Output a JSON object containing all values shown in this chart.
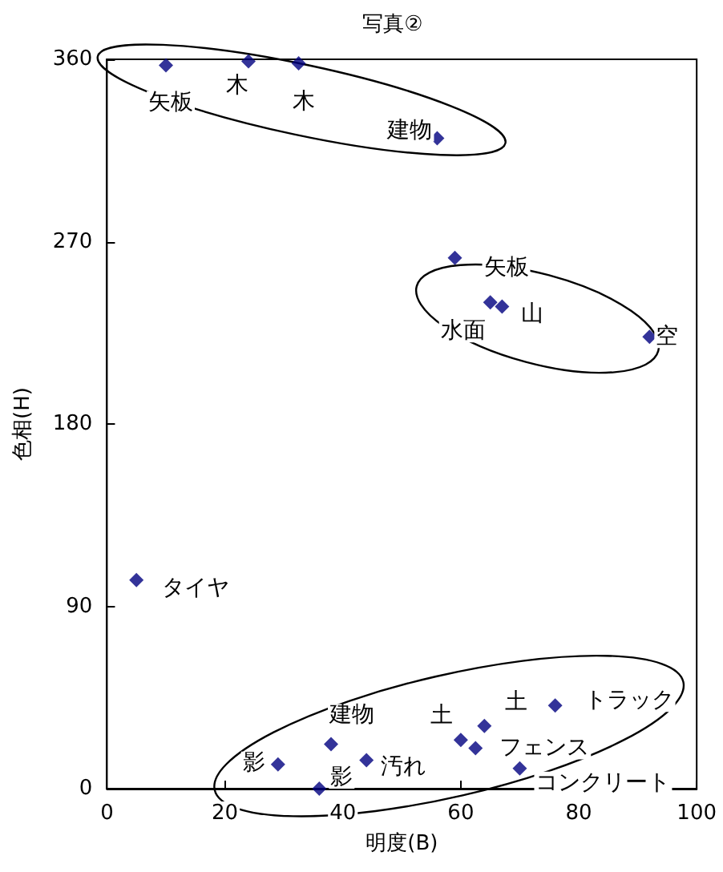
{
  "chart_data": {
    "type": "scatter",
    "title": "写真②",
    "xlabel": "明度(B)",
    "ylabel": "色相(H)",
    "series": [
      {
        "color": "#000080",
        "x": [
          10,
          24,
          32.5,
          56,
          59,
          65,
          67,
          92,
          5,
          29,
          38,
          44,
          36,
          60,
          62.5,
          64,
          76,
          70
        ],
        "values": [
          357,
          359,
          358,
          321,
          262,
          240,
          238,
          223,
          103,
          12,
          22,
          14,
          0,
          24,
          20,
          31,
          41,
          10
        ]
      }
    ],
    "xlim": [
      0,
      100
    ],
    "xticks": [
      0,
      20,
      40,
      60,
      80,
      100
    ],
    "ylim": [
      0,
      360
    ],
    "yticks": [
      0,
      90,
      180,
      270,
      360
    ],
    "grid": false,
    "marker": "diamond",
    "annotations": [
      {
        "text": "矢板",
        "x": 10,
        "y": 357
      },
      {
        "text": "木",
        "x": 24,
        "y": 359
      },
      {
        "text": "木",
        "x": 32.5,
        "y": 358
      },
      {
        "text": "建物",
        "x": 56,
        "y": 321
      },
      {
        "text": "矢板",
        "x": 59,
        "y": 262
      },
      {
        "text": "水面",
        "x": 65,
        "y": 240
      },
      {
        "text": "山",
        "x": 67,
        "y": 238
      },
      {
        "text": "空",
        "x": 92,
        "y": 223
      },
      {
        "text": "タイヤ",
        "x": 5,
        "y": 103
      },
      {
        "text": "建物",
        "x": 38,
        "y": 22
      },
      {
        "text": "土",
        "x": 60,
        "y": 24
      },
      {
        "text": "土",
        "x": 64,
        "y": 31
      },
      {
        "text": "トラック",
        "x": 76,
        "y": 41
      },
      {
        "text": "影",
        "x": 29,
        "y": 12
      },
      {
        "text": "汚れ",
        "x": 44,
        "y": 14
      },
      {
        "text": "影",
        "x": 36,
        "y": 0
      },
      {
        "text": "フェンス",
        "x": 62.5,
        "y": 20
      },
      {
        "text": "コンクリート",
        "x": 70,
        "y": 10
      }
    ]
  }
}
